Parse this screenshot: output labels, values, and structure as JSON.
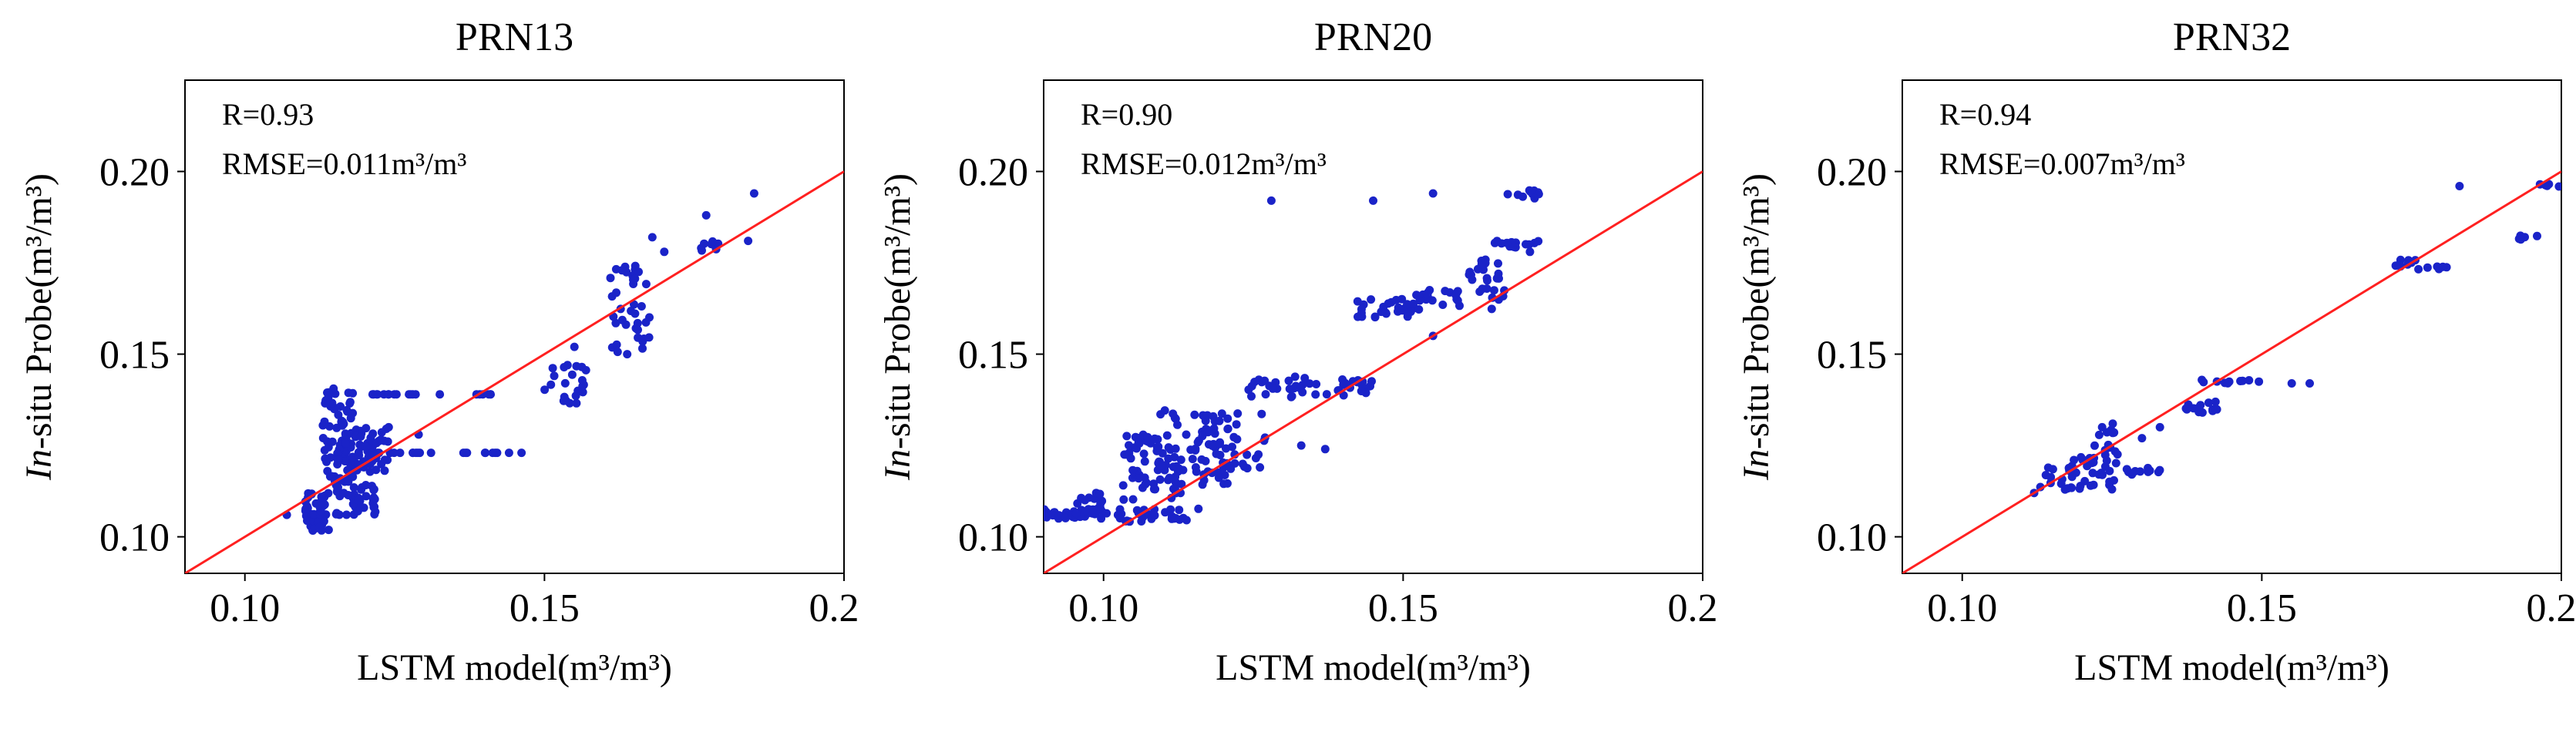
{
  "figure": {
    "panel_count": 3
  },
  "chart_data": [
    {
      "type": "scatter",
      "title": "PRN13",
      "xlabel": "LSTM model(m³/m³)",
      "ylabel_italic": "In",
      "ylabel_rest": "-situ Probe(m³/m³)",
      "xlim": [
        0.09,
        0.2
      ],
      "ylim": [
        0.09,
        0.225
      ],
      "xticks": [
        0.1,
        0.15,
        0.2
      ],
      "xtick_labels": [
        "0.10",
        "0.15",
        "0.20"
      ],
      "yticks": [
        0.1,
        0.15,
        0.2
      ],
      "ytick_labels": [
        "0.10",
        "0.15",
        "0.20"
      ],
      "annotations": {
        "r": "R=0.93",
        "rmse": "RMSE=0.011m³/m³"
      },
      "reference_line": {
        "type": "1:1",
        "color": "#ff2020"
      },
      "point_color": "#1a23c8",
      "clusters": [
        {
          "x": [
            0.11,
            0.114
          ],
          "y": [
            0.101,
            0.112
          ],
          "n": 45
        },
        {
          "x": [
            0.113,
            0.118
          ],
          "y": [
            0.115,
            0.141
          ],
          "n": 70
        },
        {
          "x": [
            0.115,
            0.122
          ],
          "y": [
            0.106,
            0.126
          ],
          "n": 65
        },
        {
          "x": [
            0.118,
            0.124
          ],
          "y": [
            0.117,
            0.13
          ],
          "n": 40
        },
        {
          "x": [
            0.121,
            0.135
          ],
          "y": [
            0.139,
            0.139
          ],
          "n": 14
        },
        {
          "x": [
            0.122,
            0.148
          ],
          "y": [
            0.123,
            0.123
          ],
          "n": 22
        },
        {
          "x": [
            0.138,
            0.142
          ],
          "y": [
            0.139,
            0.139
          ],
          "n": 6
        },
        {
          "x": [
            0.15,
            0.157
          ],
          "y": [
            0.136,
            0.148
          ],
          "n": 22
        },
        {
          "x": [
            0.161,
            0.168
          ],
          "y": [
            0.15,
            0.175
          ],
          "n": 38
        },
        {
          "x": [
            0.176,
            0.179
          ],
          "y": [
            0.178,
            0.181
          ],
          "n": 8
        }
      ],
      "points": [
        {
          "x": 0.107,
          "y": 0.106
        },
        {
          "x": 0.129,
          "y": 0.128
        },
        {
          "x": 0.119,
          "y": 0.11
        },
        {
          "x": 0.168,
          "y": 0.182
        },
        {
          "x": 0.177,
          "y": 0.188
        },
        {
          "x": 0.184,
          "y": 0.181
        },
        {
          "x": 0.185,
          "y": 0.194
        },
        {
          "x": 0.17,
          "y": 0.178
        },
        {
          "x": 0.155,
          "y": 0.152
        }
      ]
    },
    {
      "type": "scatter",
      "title": "PRN20",
      "xlabel": "LSTM model(m³/m³)",
      "ylabel_italic": "In",
      "ylabel_rest": "-situ Probe(m³/m³)",
      "xlim": [
        0.09,
        0.2
      ],
      "ylim": [
        0.09,
        0.225
      ],
      "xticks": [
        0.1,
        0.15,
        0.2
      ],
      "xtick_labels": [
        "0.10",
        "0.15",
        "0.20"
      ],
      "yticks": [
        0.1,
        0.15,
        0.2
      ],
      "ytick_labels": [
        "0.10",
        "0.15",
        "0.20"
      ],
      "annotations": {
        "r": "R=0.90",
        "rmse": "RMSE=0.012m³/m³"
      },
      "reference_line": {
        "type": "1:1",
        "color": "#ff2020"
      },
      "point_color": "#1a23c8",
      "clusters": [
        {
          "x": [
            0.09,
            0.101
          ],
          "y": [
            0.105,
            0.108
          ],
          "n": 40
        },
        {
          "x": [
            0.095,
            0.1
          ],
          "y": [
            0.109,
            0.112
          ],
          "n": 12
        },
        {
          "x": [
            0.102,
            0.116
          ],
          "y": [
            0.104,
            0.108
          ],
          "n": 30
        },
        {
          "x": [
            0.103,
            0.113
          ],
          "y": [
            0.11,
            0.128
          ],
          "n": 60
        },
        {
          "x": [
            0.108,
            0.121
          ],
          "y": [
            0.114,
            0.135
          ],
          "n": 55
        },
        {
          "x": [
            0.116,
            0.127
          ],
          "y": [
            0.118,
            0.134
          ],
          "n": 35
        },
        {
          "x": [
            0.124,
            0.145
          ],
          "y": [
            0.138,
            0.144
          ],
          "n": 45
        },
        {
          "x": [
            0.142,
            0.152
          ],
          "y": [
            0.16,
            0.166
          ],
          "n": 30
        },
        {
          "x": [
            0.152,
            0.167
          ],
          "y": [
            0.162,
            0.168
          ],
          "n": 28
        },
        {
          "x": [
            0.161,
            0.166
          ],
          "y": [
            0.17,
            0.177
          ],
          "n": 18
        },
        {
          "x": [
            0.165,
            0.173
          ],
          "y": [
            0.178,
            0.181
          ],
          "n": 14
        },
        {
          "x": [
            0.167,
            0.173
          ],
          "y": [
            0.192,
            0.195
          ],
          "n": 10
        }
      ],
      "points": [
        {
          "x": 0.128,
          "y": 0.192
        },
        {
          "x": 0.145,
          "y": 0.192
        },
        {
          "x": 0.155,
          "y": 0.194
        },
        {
          "x": 0.133,
          "y": 0.125
        },
        {
          "x": 0.137,
          "y": 0.124
        },
        {
          "x": 0.155,
          "y": 0.155
        }
      ]
    },
    {
      "type": "scatter",
      "title": "PRN32",
      "xlabel": "LSTM model(m³/m³)",
      "ylabel_italic": "In",
      "ylabel_rest": "-situ Probe(m³/m³)",
      "xlim": [
        0.09,
        0.2
      ],
      "ylim": [
        0.09,
        0.225
      ],
      "xticks": [
        0.1,
        0.15,
        0.2
      ],
      "xtick_labels": [
        "0.10",
        "0.15",
        "0.20"
      ],
      "yticks": [
        0.1,
        0.15,
        0.2
      ],
      "ytick_labels": [
        "0.10",
        "0.15",
        "0.20"
      ],
      "annotations": {
        "r": "R=0.94",
        "rmse": "RMSE=0.007m³/m³"
      },
      "reference_line": {
        "type": "1:1",
        "color": "#ff2020"
      },
      "point_color": "#1a23c8",
      "clusters": [
        {
          "x": [
            0.113,
            0.119
          ],
          "y": [
            0.112,
            0.12
          ],
          "n": 14
        },
        {
          "x": [
            0.118,
            0.126
          ],
          "y": [
            0.113,
            0.122
          ],
          "n": 30
        },
        {
          "x": [
            0.122,
            0.126
          ],
          "y": [
            0.122,
            0.131
          ],
          "n": 14
        },
        {
          "x": [
            0.127,
            0.133
          ],
          "y": [
            0.117,
            0.12
          ],
          "n": 10
        },
        {
          "x": [
            0.135,
            0.143
          ],
          "y": [
            0.134,
            0.137
          ],
          "n": 14
        },
        {
          "x": [
            0.14,
            0.15
          ],
          "y": [
            0.142,
            0.143
          ],
          "n": 10
        },
        {
          "x": [
            0.172,
            0.176
          ],
          "y": [
            0.174,
            0.176
          ],
          "n": 8
        },
        {
          "x": [
            0.176,
            0.184
          ],
          "y": [
            0.173,
            0.174
          ],
          "n": 6
        },
        {
          "x": [
            0.192,
            0.196
          ],
          "y": [
            0.181,
            0.183
          ],
          "n": 5
        },
        {
          "x": [
            0.196,
            0.2
          ],
          "y": [
            0.195,
            0.197
          ],
          "n": 5
        }
      ],
      "points": [
        {
          "x": 0.183,
          "y": 0.196
        },
        {
          "x": 0.158,
          "y": 0.142
        },
        {
          "x": 0.155,
          "y": 0.142
        },
        {
          "x": 0.13,
          "y": 0.127
        },
        {
          "x": 0.133,
          "y": 0.13
        },
        {
          "x": 0.125,
          "y": 0.113
        },
        {
          "x": 0.112,
          "y": 0.112
        }
      ]
    }
  ]
}
